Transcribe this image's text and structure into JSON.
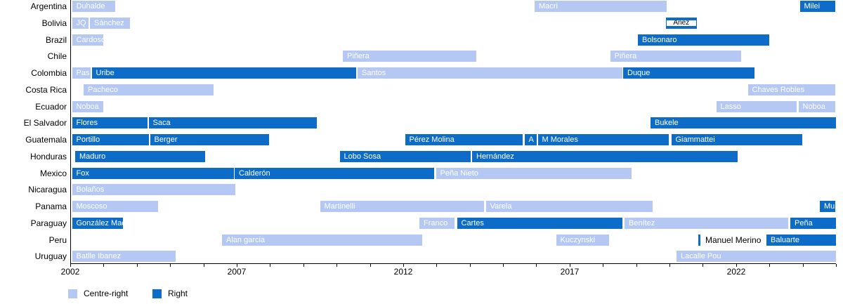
{
  "chart_data": {
    "type": "bar",
    "variant": "gantt-timeline-presidents",
    "title": "",
    "x_axis": {
      "min": 2002,
      "max": 2025,
      "tick_interval": 1,
      "labeled_ticks": [
        2002,
        2007,
        2012,
        2017,
        2022
      ]
    },
    "legend": [
      {
        "key": "cr",
        "label": "Centre-right",
        "color": "#b4c8f3"
      },
      {
        "key": "r",
        "label": "Right",
        "color": "#0d6cc7"
      }
    ],
    "colors": {
      "centre_right": "#b4c8f3",
      "right": "#0d6cc7",
      "bar_text": "#ffffff",
      "axis": "#000000"
    },
    "rows": [
      {
        "country": "Argentina",
        "bars": [
          {
            "label": "Duhalde",
            "start": 2002.04,
            "end": 2003.37,
            "type": "cr"
          },
          {
            "label": "Macri",
            "start": 2015.93,
            "end": 2019.92,
            "type": "cr"
          },
          {
            "label": "Milei",
            "start": 2023.9,
            "end": 2025.0,
            "type": "r"
          }
        ]
      },
      {
        "country": "Bolivia",
        "bars": [
          {
            "label": "JQ",
            "start": 2002.04,
            "end": 2002.57,
            "type": "cr"
          },
          {
            "label": "Sánchez",
            "start": 2002.57,
            "end": 2003.79,
            "type": "cr"
          },
          {
            "label": "Áñez",
            "start": 2019.87,
            "end": 2020.84,
            "type": "r",
            "style": "inlay"
          }
        ]
      },
      {
        "country": "Brazil",
        "bars": [
          {
            "label": "Cardoso",
            "start": 2002.04,
            "end": 2003.01,
            "type": "cr"
          },
          {
            "label": "Bolsonaro",
            "start": 2019.03,
            "end": 2023.0,
            "type": "r"
          }
        ]
      },
      {
        "country": "Chile",
        "bars": [
          {
            "label": "Piñera",
            "start": 2010.17,
            "end": 2014.2,
            "type": "cr"
          },
          {
            "label": "Piñera",
            "start": 2018.2,
            "end": 2022.17,
            "type": "cr"
          }
        ]
      },
      {
        "country": "Colombia",
        "bars": [
          {
            "label": "Pas",
            "start": 2002.04,
            "end": 2002.63,
            "type": "cr"
          },
          {
            "label": "Uribe",
            "start": 2002.63,
            "end": 2010.61,
            "type": "r"
          },
          {
            "label": "Santos",
            "start": 2010.61,
            "end": 2018.59,
            "type": "cr"
          },
          {
            "label": "Duque",
            "start": 2018.59,
            "end": 2022.57,
            "type": "r"
          }
        ]
      },
      {
        "country": "Costa Rica",
        "bars": [
          {
            "label": "Pacheco",
            "start": 2002.38,
            "end": 2006.3,
            "type": "cr"
          },
          {
            "label": "Chaves Robles",
            "start": 2022.34,
            "end": 2025.0,
            "type": "cr"
          }
        ]
      },
      {
        "country": "Ecuador",
        "bars": [
          {
            "label": "Noboa",
            "start": 2002.04,
            "end": 2003.01,
            "type": "cr"
          },
          {
            "label": "Lasso",
            "start": 2021.39,
            "end": 2023.84,
            "type": "cr"
          },
          {
            "label": "Noboa",
            "start": 2023.86,
            "end": 2025.0,
            "type": "cr"
          }
        ]
      },
      {
        "country": "El Salvador",
        "bars": [
          {
            "label": "Flores",
            "start": 2002.04,
            "end": 2004.34,
            "type": "r"
          },
          {
            "label": "Saca",
            "start": 2004.34,
            "end": 2009.41,
            "type": "r"
          },
          {
            "label": "Bukele",
            "start": 2019.41,
            "end": 2025.0,
            "type": "r"
          }
        ]
      },
      {
        "country": "Guatemala",
        "bars": [
          {
            "label": "Portillo",
            "start": 2002.04,
            "end": 2004.38,
            "type": "r"
          },
          {
            "label": "Berger",
            "start": 2004.38,
            "end": 2007.99,
            "type": "r"
          },
          {
            "label": "Pérez Molina",
            "start": 2012.04,
            "end": 2015.61,
            "type": "r"
          },
          {
            "label": "A",
            "start": 2015.63,
            "end": 2016.03,
            "type": "r"
          },
          {
            "label": "M Morales",
            "start": 2016.03,
            "end": 2020.0,
            "type": "r"
          },
          {
            "label": "Giammattei",
            "start": 2020.04,
            "end": 2024.01,
            "type": "r"
          }
        ]
      },
      {
        "country": "Honduras",
        "bars": [
          {
            "label": "Maduro",
            "start": 2002.13,
            "end": 2006.05,
            "type": "r"
          },
          {
            "label": "Lobo Sosa",
            "start": 2010.08,
            "end": 2014.05,
            "type": "r"
          },
          {
            "label": "Hernández",
            "start": 2014.05,
            "end": 2022.05,
            "type": "r"
          }
        ]
      },
      {
        "country": "Mexico",
        "bars": [
          {
            "label": "Fox",
            "start": 2002.04,
            "end": 2006.92,
            "type": "r"
          },
          {
            "label": "Calderón",
            "start": 2006.92,
            "end": 2012.93,
            "type": "r"
          },
          {
            "label": "Peña Nieto",
            "start": 2012.97,
            "end": 2018.88,
            "type": "cr"
          }
        ]
      },
      {
        "country": "Nicaragua",
        "bars": [
          {
            "label": "Bolaños",
            "start": 2002.04,
            "end": 2006.98,
            "type": "cr"
          }
        ]
      },
      {
        "country": "Panama",
        "bars": [
          {
            "label": "Moscoso",
            "start": 2002.04,
            "end": 2004.66,
            "type": "cr"
          },
          {
            "label": "Martinelli",
            "start": 2009.49,
            "end": 2014.45,
            "type": "cr"
          },
          {
            "label": "Varela",
            "start": 2014.47,
            "end": 2019.51,
            "type": "cr"
          },
          {
            "label": "Mu",
            "start": 2024.5,
            "end": 2025.0,
            "type": "r"
          }
        ]
      },
      {
        "country": "Paraguay",
        "bars": [
          {
            "label": "González Mac",
            "start": 2002.04,
            "end": 2003.6,
            "type": "r"
          },
          {
            "label": "Franco",
            "start": 2012.47,
            "end": 2013.56,
            "type": "cr"
          },
          {
            "label": "Cartes",
            "start": 2013.6,
            "end": 2018.59,
            "type": "r"
          },
          {
            "label": "Benítez",
            "start": 2018.63,
            "end": 2023.57,
            "type": "cr"
          },
          {
            "label": "Peña",
            "start": 2023.61,
            "end": 2025.0,
            "type": "r"
          }
        ]
      },
      {
        "country": "Peru",
        "bars": [
          {
            "label": "Alan garcia",
            "start": 2006.54,
            "end": 2012.59,
            "type": "cr"
          },
          {
            "label": "Kuczynski",
            "start": 2016.58,
            "end": 2018.21,
            "type": "cr"
          },
          {
            "label": "Manuel Merino",
            "start": 2020.86,
            "end": 2020.93,
            "type": "r",
            "style": "thin-outside-label"
          },
          {
            "label": "Baluarte",
            "start": 2022.89,
            "end": 2025.0,
            "type": "r"
          }
        ]
      },
      {
        "country": "Uruguay",
        "bars": [
          {
            "label": "Batlle Ibanez",
            "start": 2002.04,
            "end": 2005.17,
            "type": "cr"
          },
          {
            "label": "Lacalle Pou",
            "start": 2020.19,
            "end": 2025.0,
            "type": "cr"
          }
        ]
      }
    ]
  }
}
